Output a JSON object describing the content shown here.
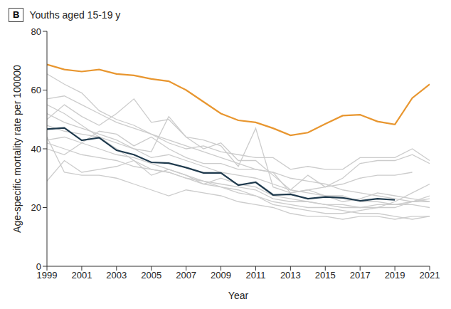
{
  "chart_data": {
    "type": "line",
    "panel": "B",
    "title": "Youths aged 15-19 y",
    "x_label": "Year",
    "y_label": "Age-specific mortality rate per 100000",
    "x": [
      1999,
      2000,
      2001,
      2002,
      2003,
      2004,
      2005,
      2006,
      2007,
      2008,
      2009,
      2010,
      2011,
      2012,
      2013,
      2014,
      2015,
      2016,
      2017,
      2018,
      2019,
      2020,
      2021
    ],
    "xlim": [
      1999,
      2021
    ],
    "xticks": [
      1999,
      2001,
      2003,
      2005,
      2007,
      2009,
      2011,
      2013,
      2015,
      2017,
      2019,
      2021
    ],
    "ylim": [
      0,
      80
    ],
    "yticks": [
      0,
      20,
      40,
      60,
      80
    ],
    "grid": false,
    "series": [
      {
        "color": "#cccccc",
        "values": [
          65.5,
          62,
          59,
          53,
          50,
          48,
          45,
          43,
          41,
          39,
          37,
          35,
          33,
          32,
          30,
          29,
          28,
          26,
          25,
          24,
          23,
          22,
          22
        ]
      },
      {
        "color": "#cccccc",
        "values": [
          57,
          58,
          55,
          52,
          49,
          47,
          45,
          42,
          40,
          41,
          39,
          38,
          37,
          37,
          33,
          34,
          33,
          33,
          37,
          37,
          37,
          40,
          36
        ]
      },
      {
        "color": "#cccccc",
        "values": [
          50,
          55,
          51,
          48,
          52,
          57,
          49,
          50,
          44,
          43,
          41,
          34,
          47,
          27,
          25,
          26,
          27,
          28,
          30,
          31,
          31,
          32,
          null
        ]
      },
      {
        "color": "#cccccc",
        "values": [
          29,
          36,
          32,
          33,
          34,
          36,
          31,
          33,
          31,
          28,
          30,
          28,
          27,
          24,
          23,
          22,
          21,
          21,
          20,
          20,
          22,
          25,
          28
        ]
      },
      {
        "color": "#cccccc",
        "values": [
          42,
          40,
          38,
          37,
          36,
          34,
          33,
          32,
          30,
          29,
          27,
          26,
          24,
          22,
          21,
          20,
          20,
          19,
          18,
          18,
          17,
          16,
          17
        ]
      },
      {
        "color": "#cccccc",
        "values": [
          44,
          32,
          31,
          31,
          30,
          28,
          26,
          24,
          26,
          25,
          24,
          22,
          21,
          20,
          18,
          17,
          17,
          16,
          17,
          17,
          16,
          17,
          17
        ]
      },
      {
        "color": "#cccccc",
        "values": [
          52,
          49,
          47,
          45,
          43,
          40,
          37,
          38,
          36,
          34,
          32,
          31,
          30,
          28,
          26,
          25,
          24,
          24,
          22,
          22,
          21,
          22,
          24
        ]
      },
      {
        "color": "#cccccc",
        "values": [
          48,
          46,
          45,
          44,
          42,
          40,
          39,
          51,
          44,
          40,
          42,
          36,
          36,
          31,
          26,
          31,
          27,
          30,
          35,
          36,
          36,
          38,
          35
        ]
      },
      {
        "color": "#cccccc",
        "values": [
          40,
          38,
          42,
          46,
          45,
          41,
          44,
          40,
          37,
          35,
          35,
          33,
          33,
          32,
          25,
          26,
          24,
          22,
          23,
          25,
          24,
          23,
          22
        ]
      },
      {
        "color": "#cccccc",
        "values": [
          43,
          44,
          42,
          40,
          38,
          37,
          35,
          33,
          31,
          29,
          28,
          27,
          26,
          23,
          22,
          22,
          21,
          20,
          20,
          21,
          21,
          21,
          20
        ]
      },
      {
        "color": "#cccccc",
        "values": [
          55,
          52,
          48,
          44,
          40,
          36,
          33,
          32,
          30,
          28,
          27,
          25,
          24,
          21,
          20,
          19,
          18,
          18,
          19,
          20,
          20,
          22,
          23
        ]
      },
      {
        "color": "#1f3a4d",
        "values": [
          46.7,
          47.1,
          42.9,
          43.8,
          39.5,
          38,
          35.4,
          35.1,
          33.6,
          31.8,
          31.8,
          27.6,
          28.6,
          24.3,
          24.5,
          23,
          23.6,
          23.3,
          22.3,
          23,
          22.6,
          null,
          null
        ]
      },
      {
        "color": "#e8962f",
        "values": [
          68.7,
          67,
          66.3,
          67,
          65.5,
          65,
          63.8,
          63,
          60,
          56,
          52,
          49.7,
          49,
          47,
          44.6,
          45.5,
          48.5,
          51.3,
          51.6,
          49.3,
          48.3,
          57.3,
          62
        ]
      }
    ]
  }
}
